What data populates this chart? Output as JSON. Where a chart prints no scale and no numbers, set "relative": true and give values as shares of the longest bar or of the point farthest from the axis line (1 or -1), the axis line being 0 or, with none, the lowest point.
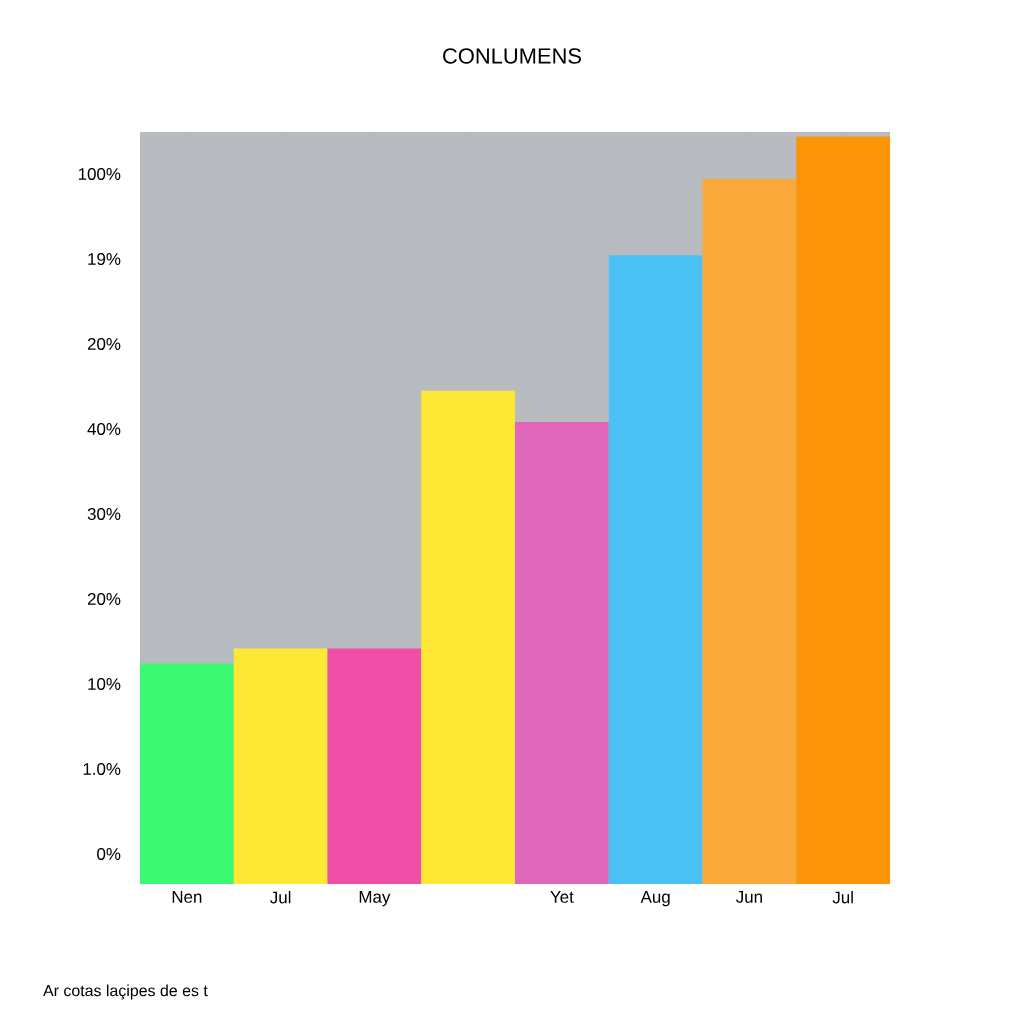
{
  "chart_data": {
    "type": "bar",
    "title": "CONLUMENS",
    "categories": [
      "Nen",
      "Jul",
      "May",
      null,
      "Yet",
      "Aug",
      "Jun",
      "Jul"
    ],
    "values": [
      0.295,
      0.315,
      0.315,
      0.66,
      0.618,
      0.841,
      0.943,
      1
    ],
    "colors": [
      "#3cf872",
      "#fde935",
      "#f04fa8",
      "#fde935",
      "#e066bb",
      "#4bc0f5",
      "#fca93c",
      "#fb9507"
    ],
    "relative": true,
    "annotations": [
      "Ar cotas laçipes de es t",
      "0%",
      "1.0%",
      "10%",
      "20%",
      "30%",
      "40%",
      "20%",
      "19%",
      "100%"
    ]
  }
}
